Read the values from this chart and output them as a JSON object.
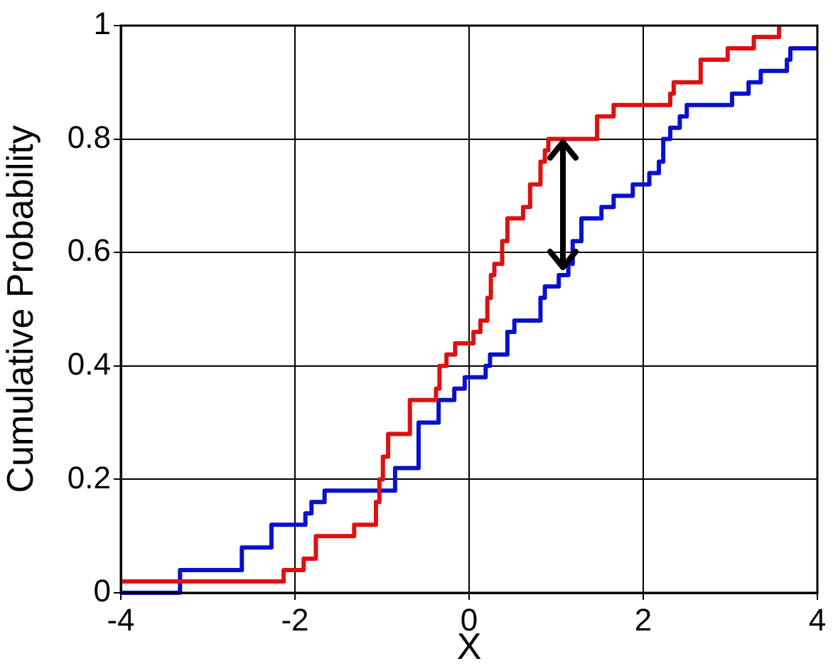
{
  "chart_data": {
    "type": "step",
    "xlabel": "X",
    "ylabel": "Cumulative Probability",
    "xlim": [
      -4,
      4
    ],
    "ylim": [
      0,
      1
    ],
    "xticks": [
      -4,
      -2,
      0,
      2,
      4
    ],
    "yticks": [
      0,
      0.2,
      0.4,
      0.6,
      0.8,
      1
    ],
    "grid": true,
    "legend": false,
    "series": [
      {
        "color": "#dd1111",
        "x": [
          -4,
          -2.13,
          -1.9,
          -1.76,
          -1.32,
          -1.07,
          -1.03,
          -0.99,
          -0.93,
          -0.68,
          -0.38,
          -0.34,
          -0.26,
          -0.16,
          0.05,
          0.13,
          0.21,
          0.25,
          0.29,
          0.38,
          0.44,
          0.62,
          0.7,
          0.82,
          0.87,
          0.91,
          1.47,
          1.66,
          2.31,
          2.35,
          2.66,
          2.97,
          3.27,
          3.56
        ],
        "values": [
          0.02,
          0.04,
          0.06,
          0.1,
          0.12,
          0.16,
          0.2,
          0.24,
          0.28,
          0.34,
          0.36,
          0.4,
          0.42,
          0.44,
          0.46,
          0.48,
          0.52,
          0.56,
          0.58,
          0.62,
          0.66,
          0.68,
          0.72,
          0.76,
          0.78,
          0.8,
          0.84,
          0.86,
          0.88,
          0.9,
          0.94,
          0.96,
          0.98,
          1
        ]
      },
      {
        "color": "#0a10cc",
        "x": [
          -4,
          -3.32,
          -2.61,
          -2.27,
          -1.88,
          -1.81,
          -1.66,
          -0.85,
          -0.58,
          -0.35,
          -0.17,
          -0.05,
          0.19,
          0.24,
          0.44,
          0.52,
          0.82,
          0.87,
          1.03,
          1.14,
          1.19,
          1.29,
          1.52,
          1.66,
          1.88,
          2.07,
          2.18,
          2.23,
          2.31,
          2.42,
          2.5,
          3.02,
          3.21,
          3.35,
          3.65,
          3.69,
          4
        ],
        "values": [
          0,
          0.04,
          0.08,
          0.12,
          0.14,
          0.16,
          0.18,
          0.22,
          0.3,
          0.34,
          0.36,
          0.38,
          0.4,
          0.42,
          0.46,
          0.48,
          0.52,
          0.54,
          0.56,
          0.58,
          0.62,
          0.66,
          0.68,
          0.7,
          0.72,
          0.74,
          0.76,
          0.8,
          0.82,
          0.84,
          0.86,
          0.88,
          0.9,
          0.92,
          0.94,
          0.96,
          0.96
        ]
      }
    ]
  }
}
